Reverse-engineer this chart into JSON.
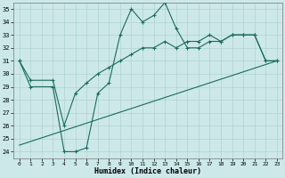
{
  "xlabel": "Humidex (Indice chaleur)",
  "bg_color": "#cce8e8",
  "grid_color": "#b0d4cc",
  "line_color": "#1a6b5a",
  "xlim": [
    -0.5,
    23.5
  ],
  "ylim": [
    23.5,
    35.5
  ],
  "xticks": [
    0,
    1,
    2,
    3,
    4,
    5,
    6,
    7,
    8,
    9,
    10,
    11,
    12,
    13,
    14,
    15,
    16,
    17,
    18,
    19,
    20,
    21,
    22,
    23
  ],
  "yticks": [
    24,
    25,
    26,
    27,
    28,
    29,
    30,
    31,
    32,
    33,
    34,
    35
  ],
  "line1_x": [
    0,
    1,
    3,
    4,
    5,
    6,
    7,
    8,
    9,
    10,
    11,
    12,
    13,
    14,
    15,
    16,
    17,
    18,
    19,
    20,
    21,
    22,
    23
  ],
  "line1_y": [
    31,
    29,
    29,
    24,
    24,
    24.3,
    28.5,
    29.3,
    33,
    35,
    34,
    34.5,
    35.5,
    33.5,
    32,
    32,
    32.5,
    32.5,
    33,
    33,
    33,
    31,
    31
  ],
  "line2_x": [
    0,
    1,
    3,
    4,
    5,
    6,
    7,
    8,
    9,
    10,
    11,
    12,
    13,
    14,
    15,
    16,
    17,
    18,
    19,
    20,
    21,
    22,
    23
  ],
  "line2_y": [
    31,
    29.5,
    29.5,
    26,
    28.5,
    29.3,
    30,
    30.5,
    31,
    31.5,
    32,
    32,
    32.5,
    32,
    32.5,
    32.5,
    33,
    32.5,
    33,
    33,
    33,
    31,
    31
  ],
  "line3_x": [
    0,
    23
  ],
  "line3_y": [
    24.5,
    31.0
  ]
}
